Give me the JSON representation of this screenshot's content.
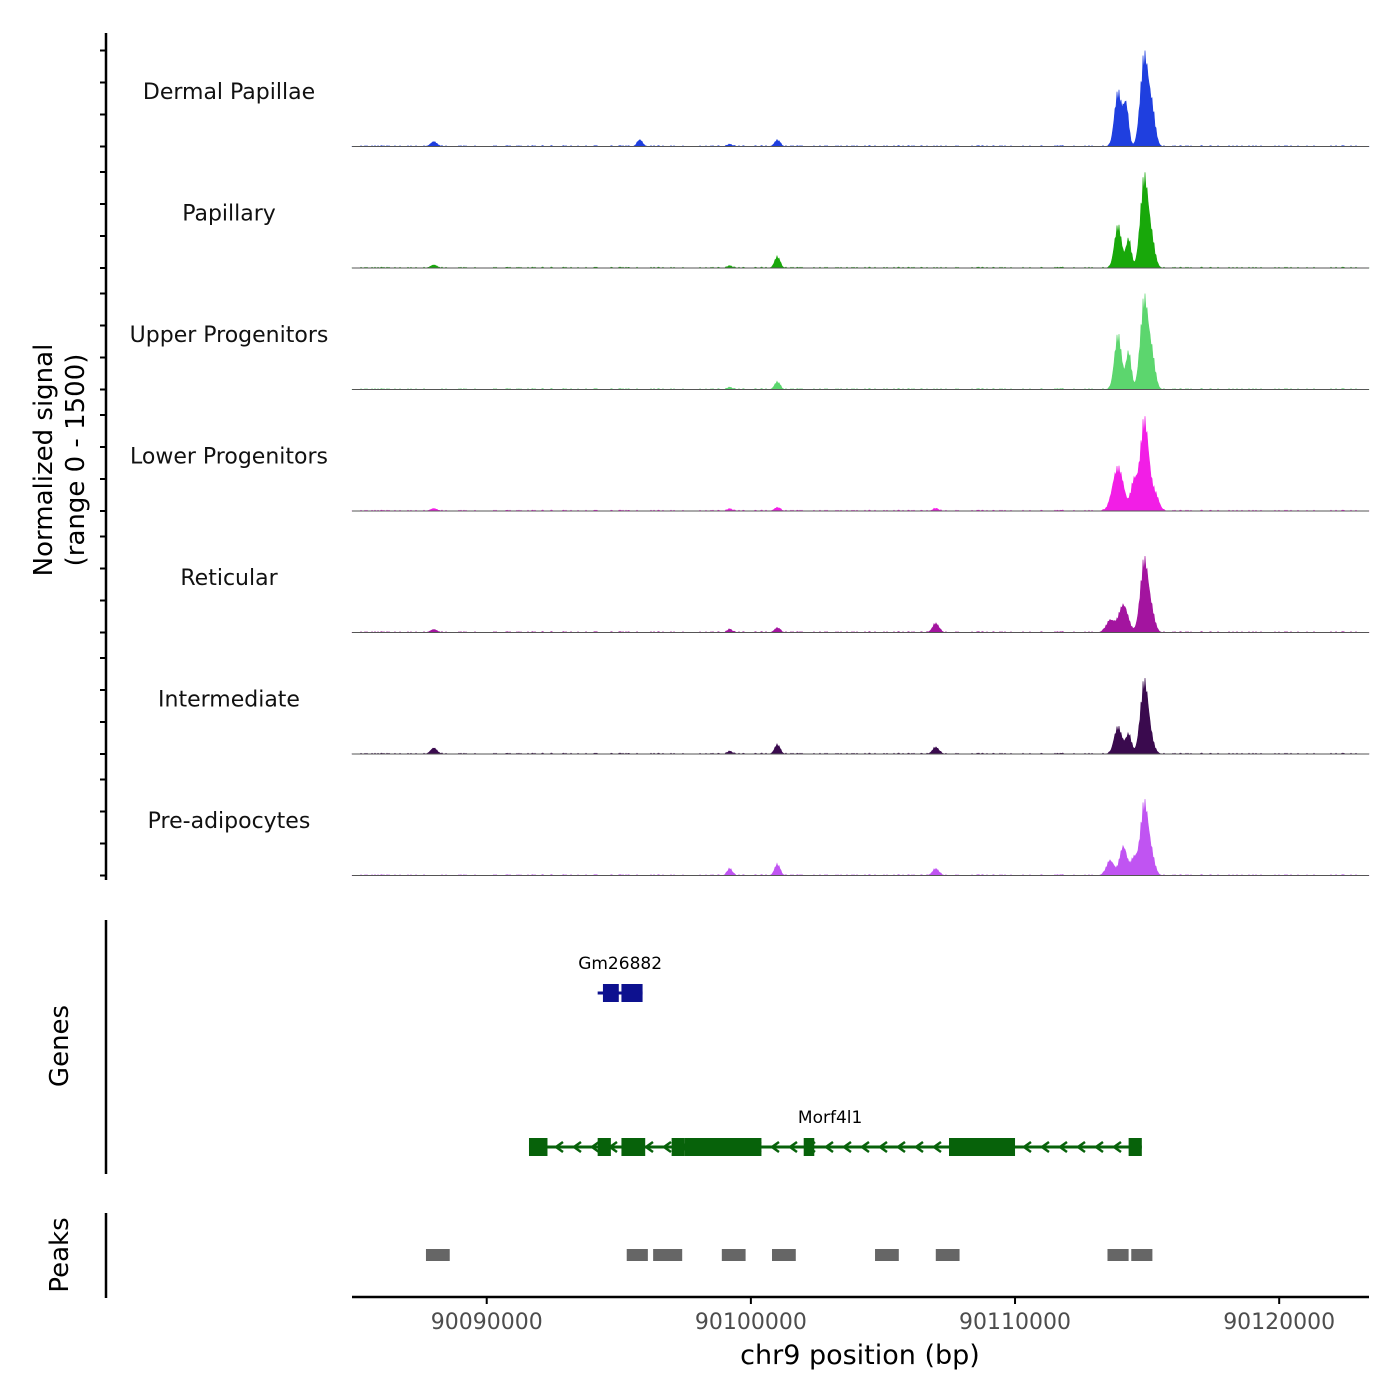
{
  "chart_data": {
    "type": "area",
    "y_axis_title": [
      "Normalized signal",
      "(range 0 - 1500)"
    ],
    "y_range": [
      0,
      1500
    ],
    "x_axis_title": "chr9 position (bp)",
    "x_range": [
      90084900,
      90123400
    ],
    "x_ticks": [
      90090000,
      90100000,
      90110000,
      90120000
    ],
    "x_tick_labels": [
      "90090000",
      "90100000",
      "90110000",
      "90120000"
    ],
    "tracks": [
      {
        "name": "Dermal Papillae",
        "color": "#1f3fdf",
        "peaks": [
          [
            90088000,
            80,
            120
          ],
          [
            90095800,
            110,
            100
          ],
          [
            90099200,
            40,
            80
          ],
          [
            90101000,
            110,
            100
          ],
          [
            90113900,
            900,
            130
          ],
          [
            90114200,
            680,
            100
          ],
          [
            90114900,
            1500,
            150
          ],
          [
            90115200,
            520,
            120
          ]
        ]
      },
      {
        "name": "Papillary",
        "color": "#18a80a",
        "peaks": [
          [
            90088000,
            50,
            120
          ],
          [
            90101000,
            190,
            100
          ],
          [
            90099200,
            40,
            80
          ],
          [
            90113900,
            700,
            130
          ],
          [
            90114300,
            480,
            100
          ],
          [
            90114900,
            1500,
            150
          ],
          [
            90115200,
            350,
            120
          ]
        ]
      },
      {
        "name": "Upper Progenitors",
        "color": "#5cd66e",
        "peaks": [
          [
            90099200,
            40,
            80
          ],
          [
            90101000,
            130,
            100
          ],
          [
            90113900,
            900,
            130
          ],
          [
            90114300,
            620,
            100
          ],
          [
            90114900,
            1500,
            150
          ],
          [
            90115200,
            460,
            120
          ]
        ]
      },
      {
        "name": "Lower Progenitors",
        "color": "#f21ee6",
        "peaks": [
          [
            90088000,
            40,
            120
          ],
          [
            90099200,
            40,
            80
          ],
          [
            90101000,
            60,
            100
          ],
          [
            90107000,
            40,
            100
          ],
          [
            90113900,
            720,
            200
          ],
          [
            90114500,
            470,
            120
          ],
          [
            90114900,
            1500,
            160
          ],
          [
            90115300,
            280,
            140
          ]
        ]
      },
      {
        "name": "Reticular",
        "color": "#a3149f",
        "peaks": [
          [
            90088000,
            50,
            120
          ],
          [
            90099200,
            60,
            80
          ],
          [
            90101000,
            80,
            100
          ],
          [
            90107000,
            150,
            120
          ],
          [
            90113600,
            200,
            150
          ],
          [
            90114100,
            450,
            180
          ],
          [
            90114900,
            1200,
            150
          ],
          [
            90115200,
            250,
            120
          ]
        ]
      },
      {
        "name": "Intermediate",
        "color": "#3a0a4e",
        "peaks": [
          [
            90088000,
            100,
            120
          ],
          [
            90099200,
            50,
            80
          ],
          [
            90101000,
            160,
            100
          ],
          [
            90107000,
            110,
            120
          ],
          [
            90113900,
            450,
            140
          ],
          [
            90114300,
            330,
            110
          ],
          [
            90114900,
            1200,
            150
          ],
          [
            90115200,
            130,
            120
          ]
        ]
      },
      {
        "name": "Pre-adipocytes",
        "color": "#c054f2",
        "peaks": [
          [
            90099200,
            120,
            90
          ],
          [
            90101000,
            190,
            100
          ],
          [
            90107000,
            110,
            120
          ],
          [
            90113600,
            250,
            140
          ],
          [
            90114100,
            470,
            140
          ],
          [
            90114500,
            280,
            120
          ],
          [
            90114900,
            1200,
            150
          ],
          [
            90115200,
            240,
            120
          ]
        ]
      }
    ],
    "genes_label": "Genes",
    "genes": [
      {
        "name": "Gm26882",
        "color": "#0d118f",
        "strand": "+",
        "start": 90094200,
        "end": 90095900,
        "exons": [
          [
            90094400,
            90095000
          ],
          [
            90095100,
            90095900
          ]
        ]
      },
      {
        "name": "Morf4l1",
        "color": "#07620a",
        "strand": "-",
        "start": 90091600,
        "end": 90114800,
        "exons": [
          [
            90091600,
            90092300
          ],
          [
            90094200,
            90094700
          ],
          [
            90095100,
            90096000
          ],
          [
            90097000,
            90097500
          ],
          [
            90097500,
            90100400
          ],
          [
            90102000,
            90102400
          ],
          [
            90107500,
            90110000
          ],
          [
            90114300,
            90114800
          ]
        ]
      }
    ],
    "peaks_label": "Peaks",
    "peak_color": "#666666",
    "peak_regions": [
      [
        90087700,
        90088600
      ],
      [
        90095300,
        90096100
      ],
      [
        90096300,
        90097400
      ],
      [
        90098900,
        90099800
      ],
      [
        90100800,
        90101700
      ],
      [
        90104700,
        90105600
      ],
      [
        90107000,
        90107900
      ],
      [
        90113500,
        90114300
      ],
      [
        90114400,
        90115200
      ]
    ]
  }
}
